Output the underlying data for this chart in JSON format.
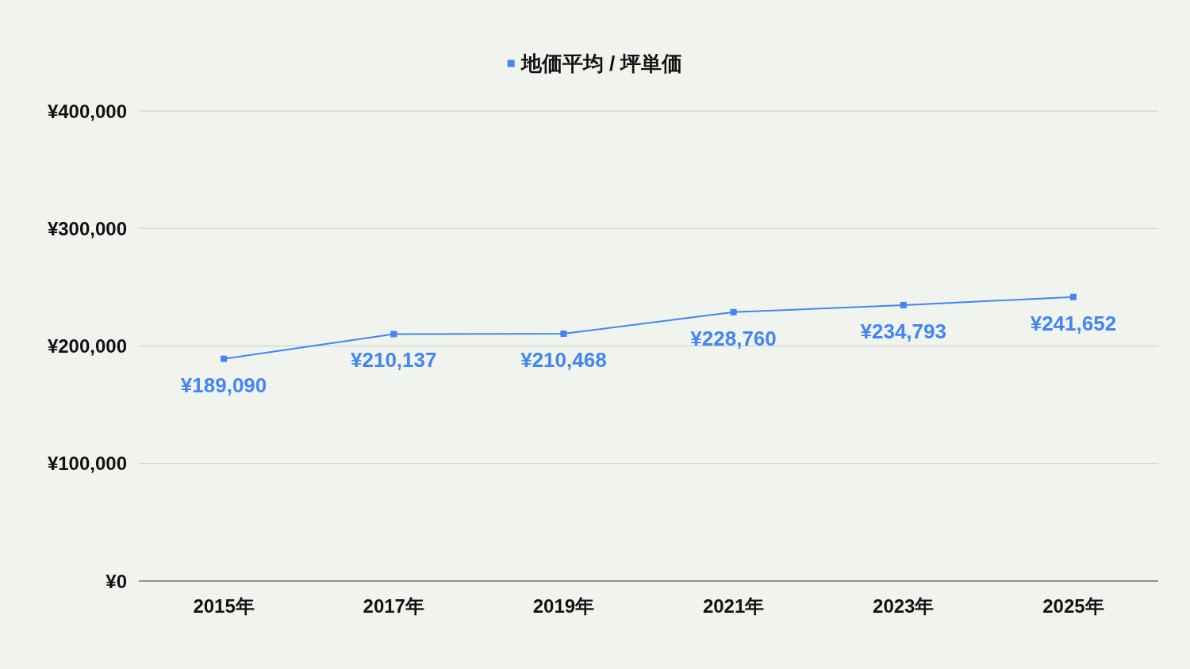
{
  "chart_data": {
    "type": "line",
    "categories": [
      "2015年",
      "2017年",
      "2019年",
      "2021年",
      "2023年",
      "2025年"
    ],
    "series": [
      {
        "name": "地価平均 / 坪単価",
        "color": "#4285f4",
        "values": [
          189090,
          210137,
          210468,
          228760,
          234793,
          241652
        ],
        "value_labels": [
          "¥189,090",
          "¥210,137",
          "¥210,468",
          "¥228,760",
          "¥234,793",
          "¥241,652"
        ]
      }
    ],
    "ylim": [
      0,
      400000
    ],
    "yticks": [
      {
        "value": 0,
        "label": "¥0"
      },
      {
        "value": 100000,
        "label": "¥100,000"
      },
      {
        "value": 200000,
        "label": "¥200,000"
      },
      {
        "value": 300000,
        "label": "¥300,000"
      },
      {
        "value": 400000,
        "label": "¥400,000"
      }
    ],
    "grid": "y",
    "legend": "top",
    "marker": "square",
    "line_style": "solid"
  }
}
